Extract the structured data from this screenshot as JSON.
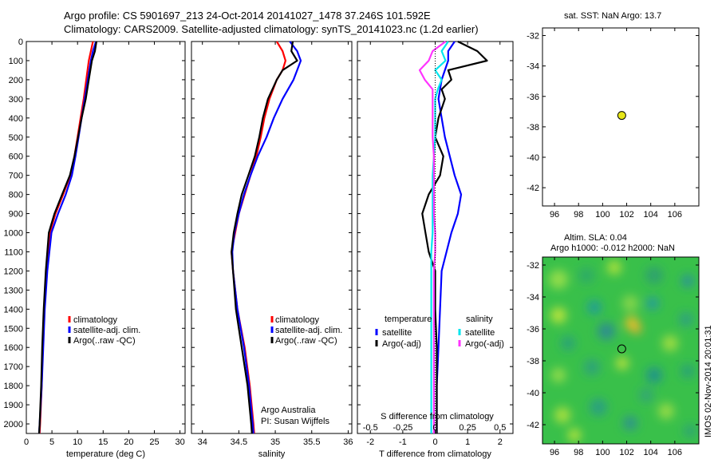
{
  "header": {
    "line1": "Argo profile: CS 5901697_213 24-Oct-2014 20141027_1478 37.246S 101.592E",
    "line2": "Climatology: CARS2009. Satellite-adjusted climatology: synTS_20141023.nc (1.2d earlier)"
  },
  "map_top": {
    "title": "sat. SST: NaN Argo: 13.7"
  },
  "map_bottom": {
    "title1": "Altim. SLA: 0.04",
    "title2": "Argo h1000: -0.012 h2000: NaN"
  },
  "credits": {
    "line1": "Argo Australia",
    "line2": "PI: Susan Wijffels"
  },
  "timestamp": "IMOS 02-Nov-2014 20:01:31",
  "colors": {
    "climatology": "#ff0000",
    "satellite": "#0000ff",
    "argo": "#000000",
    "salinity_satellite": "#00e5ee",
    "salinity_argo": "#ff33ff",
    "argo_marker": "#e6e619",
    "sla_base": "#39c04a"
  },
  "chart_data": [
    {
      "type": "line",
      "xlabel": "temperature (deg C)",
      "xlim": [
        0,
        31
      ],
      "xticks": [
        "0",
        "5",
        "10",
        "15",
        "20",
        "25",
        "30"
      ],
      "ylim": [
        0,
        2050
      ],
      "yticks": [
        "0",
        "100",
        "200",
        "300",
        "400",
        "500",
        "600",
        "700",
        "800",
        "900",
        "1000",
        "1100",
        "1200",
        "1300",
        "1400",
        "1500",
        "1600",
        "1700",
        "1800",
        "1900",
        "2000"
      ],
      "y": [
        0,
        50,
        100,
        200,
        300,
        400,
        500,
        600,
        700,
        800,
        900,
        1000,
        1200,
        1400,
        1600,
        1800,
        2000,
        2050
      ],
      "series": [
        {
          "name": "climatology",
          "values": [
            13.0,
            12.6,
            12.2,
            11.7,
            11.2,
            10.6,
            10.0,
            9.4,
            8.6,
            7.2,
            5.7,
            4.6,
            3.9,
            3.5,
            3.2,
            3.0,
            2.7,
            2.6
          ]
        },
        {
          "name": "satellite-adj. clim.",
          "values": [
            13.6,
            13.0,
            12.6,
            12.0,
            11.4,
            10.8,
            10.2,
            9.6,
            8.9,
            7.7,
            6.2,
            4.9,
            4.1,
            3.6,
            3.3,
            3.0,
            2.6,
            2.5
          ]
        },
        {
          "name": "Argo(..raw -QC)",
          "values": [
            13.7,
            13.4,
            12.8,
            12.2,
            11.6,
            10.8,
            10.1,
            9.4,
            8.5,
            7.0,
            5.5,
            4.4,
            3.8,
            3.4,
            3.1,
            2.9,
            2.6,
            2.5
          ]
        }
      ]
    },
    {
      "type": "line",
      "xlabel": "salinity",
      "xlim": [
        33.85,
        36.05
      ],
      "xticks": [
        "34",
        "34.5",
        "35",
        "35.5",
        "36"
      ],
      "ylim": [
        0,
        2050
      ],
      "y": [
        0,
        50,
        100,
        150,
        200,
        300,
        400,
        500,
        600,
        700,
        800,
        900,
        1000,
        1100,
        1200,
        1400,
        1600,
        1800,
        2000,
        2050
      ],
      "series": [
        {
          "name": "climatology",
          "values": [
            35.02,
            35.1,
            35.14,
            35.1,
            35.02,
            34.92,
            34.85,
            34.8,
            34.74,
            34.66,
            34.58,
            34.5,
            34.45,
            34.4,
            34.42,
            34.48,
            34.58,
            34.65,
            34.7,
            34.71
          ]
        },
        {
          "name": "satellite-adj. clim.",
          "values": [
            35.2,
            35.3,
            35.35,
            35.3,
            35.25,
            35.1,
            34.98,
            34.88,
            34.76,
            34.66,
            34.57,
            34.5,
            34.44,
            34.41,
            34.42,
            34.48,
            34.57,
            34.64,
            34.69,
            34.7
          ]
        },
        {
          "name": "Argo(..raw -QC)",
          "values": [
            35.24,
            35.22,
            35.3,
            35.1,
            35.02,
            34.9,
            34.83,
            34.78,
            34.72,
            34.63,
            34.54,
            34.48,
            34.43,
            34.4,
            34.42,
            34.46,
            34.54,
            34.62,
            34.67,
            34.68
          ]
        }
      ],
      "annotation": {
        "line1": "Argo Australia",
        "line2": "PI: Susan Wijffels"
      }
    },
    {
      "type": "line",
      "xlabel": "T difference from climatology",
      "xlabel_top": "S difference from climatology",
      "xlim": [
        -2.4,
        2.4
      ],
      "xticks": [
        "-2",
        "-1",
        "0",
        "1",
        "2"
      ],
      "xticks_top": [
        "-0.5",
        "-0.25",
        "0",
        "0.25",
        "0.5"
      ],
      "s_scale": 4,
      "ylim": [
        0,
        2050
      ],
      "y": [
        0,
        50,
        100,
        150,
        200,
        250,
        300,
        400,
        500,
        600,
        700,
        800,
        900,
        1000,
        1100,
        1200,
        1400,
        1600,
        1800,
        2000,
        2050
      ],
      "legend_titles": {
        "temperature": "temperature",
        "salinity": "salinity"
      },
      "series": [
        {
          "name": "satellite",
          "group": "temperature",
          "values": [
            0.6,
            0.4,
            0.4,
            0.3,
            0.2,
            0.15,
            0.1,
            0.2,
            0.3,
            0.45,
            0.6,
            0.8,
            0.7,
            0.5,
            0.35,
            0.2,
            0.15,
            0.1,
            0.05,
            0.05,
            0.05
          ]
        },
        {
          "name": "Argo(-adj)",
          "group": "temperature",
          "values": [
            0.7,
            1.3,
            1.6,
            0.4,
            0.5,
            0.2,
            0.3,
            0.1,
            0.0,
            0.25,
            0.15,
            -0.2,
            -0.4,
            -0.3,
            -0.2,
            0.0,
            0.0,
            0.05,
            0.05,
            0.05,
            0.05
          ]
        },
        {
          "name": "satellite",
          "group": "salinity",
          "values": [
            0.1,
            0.05,
            0.08,
            0.0,
            0.05,
            0.02,
            0.0,
            0.0,
            0.0,
            -0.01,
            -0.02,
            -0.02,
            -0.02,
            -0.02,
            -0.03,
            -0.03,
            -0.03,
            -0.03,
            -0.03,
            -0.03,
            -0.03
          ]
        },
        {
          "name": "Argo(-adj)",
          "group": "salinity",
          "values": [
            0.08,
            -0.02,
            -0.05,
            -0.12,
            -0.08,
            -0.02,
            -0.02,
            -0.02,
            -0.02,
            -0.01,
            -0.01,
            -0.01,
            -0.01,
            0.0,
            0.0,
            -0.01,
            -0.01,
            -0.01,
            -0.01,
            -0.01,
            -0.01
          ]
        }
      ]
    },
    {
      "type": "scatter",
      "title": "sat. SST: NaN Argo: 13.7",
      "xlim": [
        95,
        108
      ],
      "ylim": [
        -43.2,
        -31.5
      ],
      "xticks": [
        "96",
        "98",
        "100",
        "102",
        "104",
        "106"
      ],
      "yticks": [
        "-32",
        "-34",
        "-36",
        "-38",
        "-40",
        "-42"
      ],
      "points": [
        {
          "x": 101.59,
          "y": -37.25
        }
      ]
    },
    {
      "type": "heatmap",
      "title": "Altim. SLA: 0.04  Argo h1000: -0.012 h2000: NaN",
      "xlim": [
        95,
        108
      ],
      "ylim": [
        -43.2,
        -31.5
      ],
      "xticks": [
        "96",
        "98",
        "100",
        "102",
        "104",
        "106"
      ],
      "yticks": [
        "-32",
        "-34",
        "-36",
        "-38",
        "-40",
        "-42"
      ],
      "points": [
        {
          "x": 101.59,
          "y": -37.25
        }
      ]
    }
  ]
}
